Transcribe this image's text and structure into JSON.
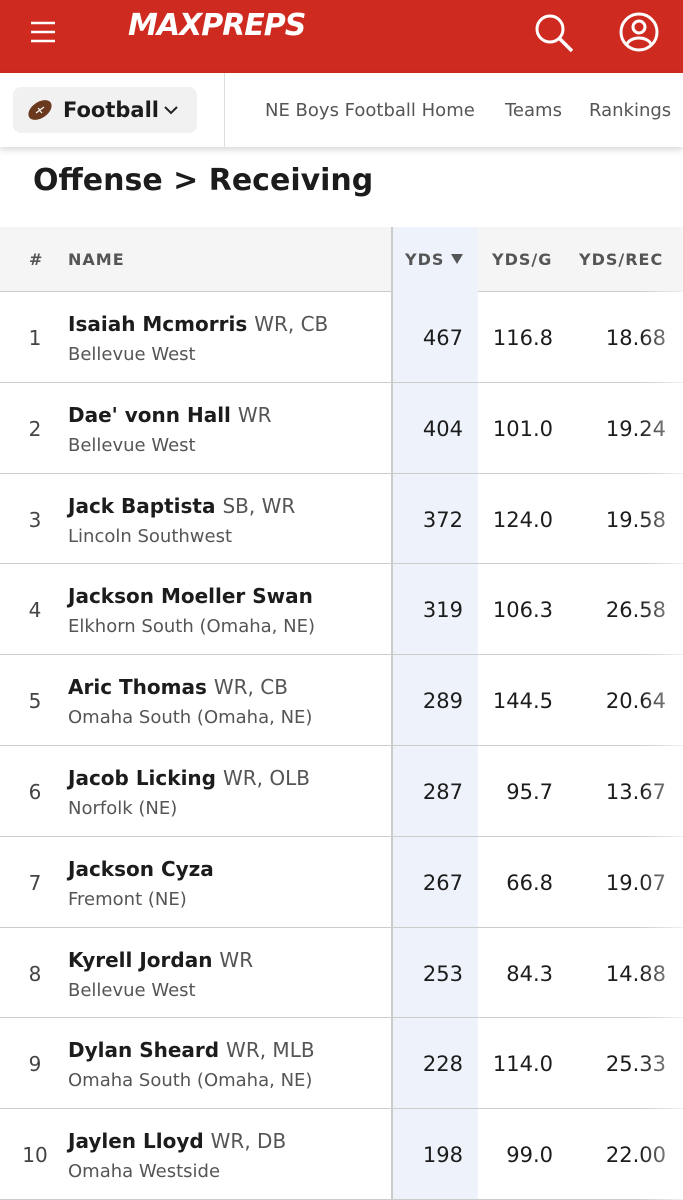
{
  "header": {
    "logo": "MAXPREPS"
  },
  "nav": {
    "sport": "Football",
    "links": [
      "NE Boys Football Home",
      "Teams",
      "Rankings"
    ]
  },
  "title": "Offense > Receiving",
  "table": {
    "columns": [
      "#",
      "NAME",
      "YDS",
      "YDS/G",
      "YDS/REC"
    ],
    "rows": [
      {
        "rank": "1",
        "name": "Isaiah Mcmorris",
        "position": "WR, CB",
        "school": "Bellevue West",
        "yds": "467",
        "ydsg": "116.8",
        "ydsrec": "18.68"
      },
      {
        "rank": "2",
        "name": "Dae' vonn Hall",
        "position": "WR",
        "school": "Bellevue West",
        "yds": "404",
        "ydsg": "101.0",
        "ydsrec": "19.24"
      },
      {
        "rank": "3",
        "name": "Jack Baptista",
        "position": "SB, WR",
        "school": "Lincoln Southwest",
        "yds": "372",
        "ydsg": "124.0",
        "ydsrec": "19.58"
      },
      {
        "rank": "4",
        "name": "Jackson Moeller Swan",
        "school": "Elkhorn South (Omaha, NE)",
        "yds": "319",
        "ydsg": "106.3",
        "ydsrec": "26.58"
      },
      {
        "rank": "5",
        "name": "Aric Thomas",
        "position": "WR, CB",
        "school": "Omaha South (Omaha, NE)",
        "yds": "289",
        "ydsg": "144.5",
        "ydsrec": "20.64"
      },
      {
        "rank": "6",
        "name": "Jacob Licking",
        "position": "WR, OLB",
        "school": "Norfolk (NE)",
        "yds": "287",
        "ydsg": "95.7",
        "ydsrec": "13.67"
      },
      {
        "rank": "7",
        "name": "Jackson Cyza",
        "school": "Fremont (NE)",
        "yds": "267",
        "ydsg": "66.8",
        "ydsrec": "19.07"
      },
      {
        "rank": "8",
        "name": "Kyrell Jordan",
        "position": "WR",
        "school": "Bellevue West",
        "yds": "253",
        "ydsg": "84.3",
        "ydsrec": "14.88"
      },
      {
        "rank": "9",
        "name": "Dylan Sheard",
        "position": "WR, MLB",
        "school": "Omaha South (Omaha, NE)",
        "yds": "228",
        "ydsg": "114.0",
        "ydsrec": "25.33"
      },
      {
        "rank": "10",
        "name": "Jaylen Lloyd",
        "position": "WR, DB",
        "school": "Omaha Westside",
        "yds": "198",
        "ydsg": "99.0",
        "ydsrec": "22.00"
      }
    ]
  }
}
